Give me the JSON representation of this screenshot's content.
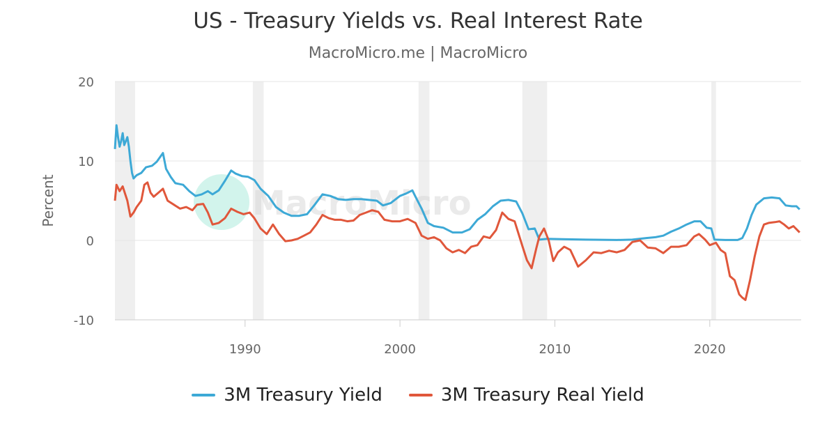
{
  "header": {
    "title": "US - Treasury Yields vs. Real Interest Rate",
    "subtitle": "MacroMicro.me | MacroMicro"
  },
  "watermark": {
    "text": "MacroMicro"
  },
  "colors": {
    "yield": "#3da9d6",
    "real": "#e0573b",
    "recession": "#efefef",
    "grid": "#e6e6e6"
  },
  "chart_data": {
    "type": "line",
    "title": "US - Treasury Yields vs. Real Interest Rate",
    "subtitle": "MacroMicro.me | MacroMicro",
    "xlabel": "",
    "ylabel": "Percent",
    "xlim": [
      1981.6,
      2025.9
    ],
    "ylim": [
      -10,
      20
    ],
    "x_ticks": [
      1990,
      2000,
      2010,
      2020
    ],
    "y_ticks": [
      -10,
      0,
      10,
      20
    ],
    "grid": true,
    "legend_position": "bottom-center",
    "recessions": [
      [
        1981.6,
        1982.9
      ],
      [
        1990.5,
        1991.2
      ],
      [
        2001.2,
        2001.9
      ],
      [
        2007.9,
        2009.5
      ],
      [
        2020.1,
        2020.4
      ]
    ],
    "series": [
      {
        "name": "3M Treasury Yield",
        "color": "#3da9d6",
        "points": [
          [
            1981.6,
            11.5
          ],
          [
            1981.7,
            14.5
          ],
          [
            1981.8,
            13.0
          ],
          [
            1981.9,
            11.8
          ],
          [
            1982.0,
            12.5
          ],
          [
            1982.1,
            13.5
          ],
          [
            1982.2,
            12.0
          ],
          [
            1982.3,
            12.5
          ],
          [
            1982.4,
            13.0
          ],
          [
            1982.5,
            11.8
          ],
          [
            1982.6,
            10.0
          ],
          [
            1982.7,
            8.5
          ],
          [
            1982.8,
            7.8
          ],
          [
            1983.0,
            8.2
          ],
          [
            1983.3,
            8.5
          ],
          [
            1983.6,
            9.2
          ],
          [
            1984.0,
            9.4
          ],
          [
            1984.3,
            9.9
          ],
          [
            1984.7,
            11.0
          ],
          [
            1984.9,
            9.0
          ],
          [
            1985.2,
            8.0
          ],
          [
            1985.5,
            7.2
          ],
          [
            1986.0,
            7.0
          ],
          [
            1986.4,
            6.2
          ],
          [
            1986.8,
            5.6
          ],
          [
            1987.2,
            5.8
          ],
          [
            1987.6,
            6.2
          ],
          [
            1987.9,
            5.8
          ],
          [
            1988.3,
            6.3
          ],
          [
            1988.7,
            7.5
          ],
          [
            1989.1,
            8.8
          ],
          [
            1989.4,
            8.4
          ],
          [
            1989.8,
            8.1
          ],
          [
            1990.2,
            8.0
          ],
          [
            1990.6,
            7.6
          ],
          [
            1991.0,
            6.5
          ],
          [
            1991.5,
            5.6
          ],
          [
            1992.0,
            4.2
          ],
          [
            1992.5,
            3.5
          ],
          [
            1993.0,
            3.1
          ],
          [
            1993.5,
            3.1
          ],
          [
            1994.0,
            3.3
          ],
          [
            1994.5,
            4.5
          ],
          [
            1995.0,
            5.8
          ],
          [
            1995.5,
            5.6
          ],
          [
            1996.0,
            5.2
          ],
          [
            1996.5,
            5.1
          ],
          [
            1997.0,
            5.2
          ],
          [
            1997.5,
            5.2
          ],
          [
            1998.0,
            5.1
          ],
          [
            1998.5,
            5.0
          ],
          [
            1998.9,
            4.4
          ],
          [
            1999.4,
            4.7
          ],
          [
            2000.0,
            5.6
          ],
          [
            2000.4,
            5.9
          ],
          [
            2000.8,
            6.3
          ],
          [
            2001.0,
            5.5
          ],
          [
            2001.4,
            4.0
          ],
          [
            2001.8,
            2.2
          ],
          [
            2002.2,
            1.8
          ],
          [
            2002.8,
            1.6
          ],
          [
            2003.4,
            1.0
          ],
          [
            2004.0,
            1.0
          ],
          [
            2004.5,
            1.4
          ],
          [
            2005.0,
            2.6
          ],
          [
            2005.5,
            3.3
          ],
          [
            2006.0,
            4.3
          ],
          [
            2006.5,
            5.0
          ],
          [
            2007.0,
            5.1
          ],
          [
            2007.5,
            4.9
          ],
          [
            2007.9,
            3.4
          ],
          [
            2008.3,
            1.4
          ],
          [
            2008.7,
            1.5
          ],
          [
            2009.0,
            0.1
          ],
          [
            2009.5,
            0.2
          ],
          [
            2010.5,
            0.15
          ],
          [
            2012.0,
            0.1
          ],
          [
            2014.0,
            0.05
          ],
          [
            2015.0,
            0.1
          ],
          [
            2015.9,
            0.3
          ],
          [
            2016.5,
            0.4
          ],
          [
            2017.0,
            0.6
          ],
          [
            2017.5,
            1.1
          ],
          [
            2018.0,
            1.5
          ],
          [
            2018.5,
            2.0
          ],
          [
            2019.0,
            2.4
          ],
          [
            2019.4,
            2.4
          ],
          [
            2019.8,
            1.6
          ],
          [
            2020.1,
            1.5
          ],
          [
            2020.3,
            0.1
          ],
          [
            2021.0,
            0.05
          ],
          [
            2021.8,
            0.05
          ],
          [
            2022.1,
            0.3
          ],
          [
            2022.4,
            1.5
          ],
          [
            2022.7,
            3.2
          ],
          [
            2023.0,
            4.5
          ],
          [
            2023.5,
            5.3
          ],
          [
            2024.0,
            5.4
          ],
          [
            2024.5,
            5.3
          ],
          [
            2024.9,
            4.4
          ],
          [
            2025.3,
            4.3
          ],
          [
            2025.6,
            4.3
          ],
          [
            2025.8,
            3.9
          ]
        ]
      },
      {
        "name": "3M Treasury Real Yield",
        "color": "#e0573b",
        "points": [
          [
            1981.6,
            5.0
          ],
          [
            1981.7,
            7.0
          ],
          [
            1981.9,
            6.2
          ],
          [
            1982.1,
            6.8
          ],
          [
            1982.4,
            5.0
          ],
          [
            1982.6,
            3.0
          ],
          [
            1982.8,
            3.5
          ],
          [
            1983.0,
            4.2
          ],
          [
            1983.3,
            5.0
          ],
          [
            1983.5,
            7.0
          ],
          [
            1983.7,
            7.3
          ],
          [
            1983.9,
            6.0
          ],
          [
            1984.1,
            5.5
          ],
          [
            1984.4,
            6.0
          ],
          [
            1984.7,
            6.5
          ],
          [
            1985.0,
            5.0
          ],
          [
            1985.4,
            4.5
          ],
          [
            1985.8,
            4.0
          ],
          [
            1986.2,
            4.2
          ],
          [
            1986.6,
            3.8
          ],
          [
            1986.9,
            4.5
          ],
          [
            1987.3,
            4.6
          ],
          [
            1987.6,
            3.5
          ],
          [
            1987.9,
            2.0
          ],
          [
            1988.3,
            2.2
          ],
          [
            1988.7,
            2.8
          ],
          [
            1989.1,
            4.0
          ],
          [
            1989.5,
            3.6
          ],
          [
            1989.9,
            3.3
          ],
          [
            1990.3,
            3.5
          ],
          [
            1990.6,
            2.8
          ],
          [
            1991.0,
            1.5
          ],
          [
            1991.4,
            0.8
          ],
          [
            1991.8,
            2.0
          ],
          [
            1992.2,
            0.8
          ],
          [
            1992.6,
            -0.1
          ],
          [
            1993.0,
            0.0
          ],
          [
            1993.4,
            0.2
          ],
          [
            1993.8,
            0.6
          ],
          [
            1994.2,
            1.0
          ],
          [
            1994.6,
            2.0
          ],
          [
            1995.0,
            3.2
          ],
          [
            1995.4,
            2.8
          ],
          [
            1995.8,
            2.6
          ],
          [
            1996.2,
            2.6
          ],
          [
            1996.6,
            2.4
          ],
          [
            1997.0,
            2.5
          ],
          [
            1997.4,
            3.2
          ],
          [
            1997.8,
            3.5
          ],
          [
            1998.2,
            3.8
          ],
          [
            1998.6,
            3.6
          ],
          [
            1999.0,
            2.6
          ],
          [
            1999.5,
            2.4
          ],
          [
            2000.0,
            2.4
          ],
          [
            2000.5,
            2.7
          ],
          [
            2001.0,
            2.2
          ],
          [
            2001.4,
            0.6
          ],
          [
            2001.8,
            0.2
          ],
          [
            2002.2,
            0.4
          ],
          [
            2002.6,
            0.0
          ],
          [
            2003.0,
            -1.0
          ],
          [
            2003.4,
            -1.5
          ],
          [
            2003.8,
            -1.2
          ],
          [
            2004.2,
            -1.6
          ],
          [
            2004.6,
            -0.8
          ],
          [
            2005.0,
            -0.6
          ],
          [
            2005.4,
            0.5
          ],
          [
            2005.8,
            0.3
          ],
          [
            2006.2,
            1.3
          ],
          [
            2006.6,
            3.5
          ],
          [
            2007.0,
            2.7
          ],
          [
            2007.4,
            2.4
          ],
          [
            2007.9,
            -0.7
          ],
          [
            2008.2,
            -2.5
          ],
          [
            2008.5,
            -3.5
          ],
          [
            2008.8,
            -1.0
          ],
          [
            2009.0,
            0.5
          ],
          [
            2009.3,
            1.5
          ],
          [
            2009.6,
            0.0
          ],
          [
            2009.9,
            -2.6
          ],
          [
            2010.2,
            -1.5
          ],
          [
            2010.6,
            -0.8
          ],
          [
            2011.0,
            -1.2
          ],
          [
            2011.5,
            -3.3
          ],
          [
            2012.0,
            -2.5
          ],
          [
            2012.5,
            -1.5
          ],
          [
            2013.0,
            -1.6
          ],
          [
            2013.5,
            -1.3
          ],
          [
            2014.0,
            -1.5
          ],
          [
            2014.5,
            -1.2
          ],
          [
            2015.0,
            -0.2
          ],
          [
            2015.5,
            0.0
          ],
          [
            2016.0,
            -0.9
          ],
          [
            2016.5,
            -1.0
          ],
          [
            2017.0,
            -1.6
          ],
          [
            2017.5,
            -0.8
          ],
          [
            2018.0,
            -0.8
          ],
          [
            2018.5,
            -0.6
          ],
          [
            2019.0,
            0.5
          ],
          [
            2019.3,
            0.8
          ],
          [
            2019.7,
            0.1
          ],
          [
            2020.0,
            -0.6
          ],
          [
            2020.4,
            -0.3
          ],
          [
            2020.7,
            -1.2
          ],
          [
            2021.0,
            -1.6
          ],
          [
            2021.3,
            -4.5
          ],
          [
            2021.6,
            -5.0
          ],
          [
            2021.9,
            -6.8
          ],
          [
            2022.1,
            -7.2
          ],
          [
            2022.3,
            -7.5
          ],
          [
            2022.6,
            -5.0
          ],
          [
            2022.9,
            -2.0
          ],
          [
            2023.2,
            0.5
          ],
          [
            2023.5,
            2.0
          ],
          [
            2023.8,
            2.2
          ],
          [
            2024.2,
            2.3
          ],
          [
            2024.5,
            2.4
          ],
          [
            2024.8,
            2.0
          ],
          [
            2025.1,
            1.5
          ],
          [
            2025.4,
            1.8
          ],
          [
            2025.8,
            1.0
          ]
        ]
      }
    ]
  },
  "legend": {
    "items": [
      {
        "label": "3M Treasury Yield"
      },
      {
        "label": "3M Treasury Real Yield"
      }
    ]
  }
}
